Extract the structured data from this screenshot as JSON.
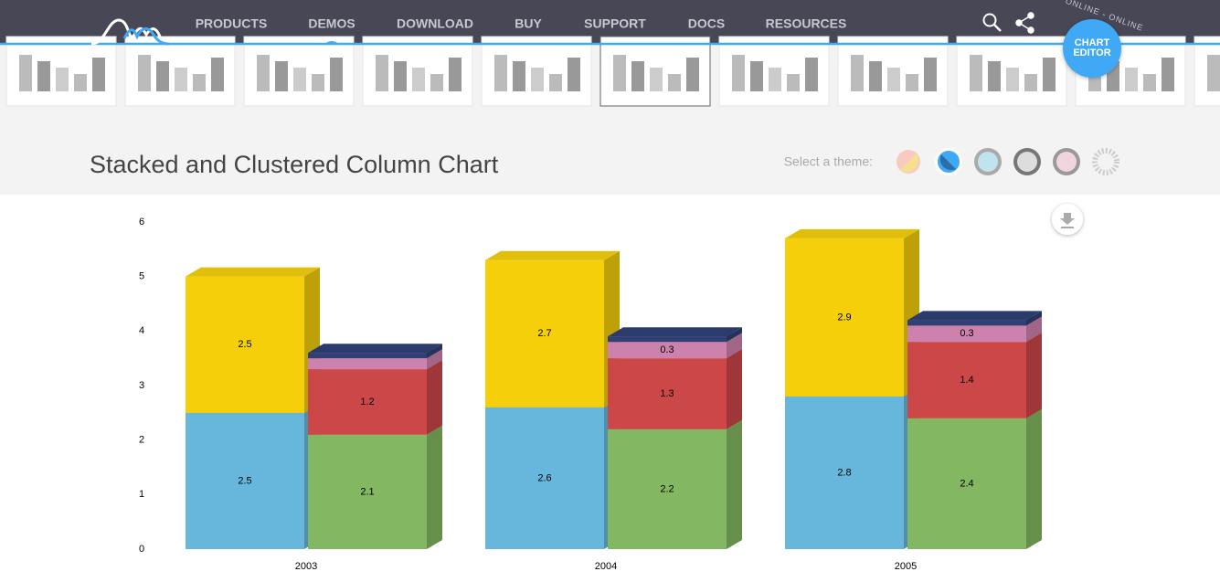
{
  "nav": {
    "items": [
      "PRODUCTS",
      "DEMOS",
      "DOWNLOAD",
      "BUY",
      "SUPPORT",
      "DOCS",
      "RESOURCES"
    ],
    "editor_badge": "ONLINE - ONLINE",
    "editor_button": [
      "CHART",
      "EDITOR"
    ]
  },
  "header": {
    "title": "Stacked and Clustered Column Chart",
    "theme_label": "Select a theme:"
  },
  "chart_data": {
    "type": "bar",
    "stacked": true,
    "depth3d": true,
    "grid": false,
    "categories": [
      "2003",
      "2004",
      "2005"
    ],
    "series": [
      {
        "stack": 0,
        "color": "#67b7dc",
        "values": [
          2.5,
          2.6,
          2.8
        ]
      },
      {
        "stack": 0,
        "color": "#f4cf0a",
        "values": [
          2.5,
          2.7,
          2.9
        ]
      },
      {
        "stack": 1,
        "color": "#84b761",
        "values": [
          2.1,
          2.2,
          2.4
        ]
      },
      {
        "stack": 1,
        "color": "#cc4748",
        "values": [
          1.2,
          1.3,
          1.4
        ]
      },
      {
        "stack": 1,
        "color": "#cd82ad",
        "values": [
          0.2,
          0.3,
          0.3
        ]
      },
      {
        "stack": 1,
        "color": "#2f4074",
        "values": [
          0.1,
          0.1,
          0.1
        ]
      }
    ],
    "ylim": [
      0,
      6
    ],
    "yticks": [
      0,
      1,
      2,
      3,
      4,
      5,
      6
    ]
  }
}
